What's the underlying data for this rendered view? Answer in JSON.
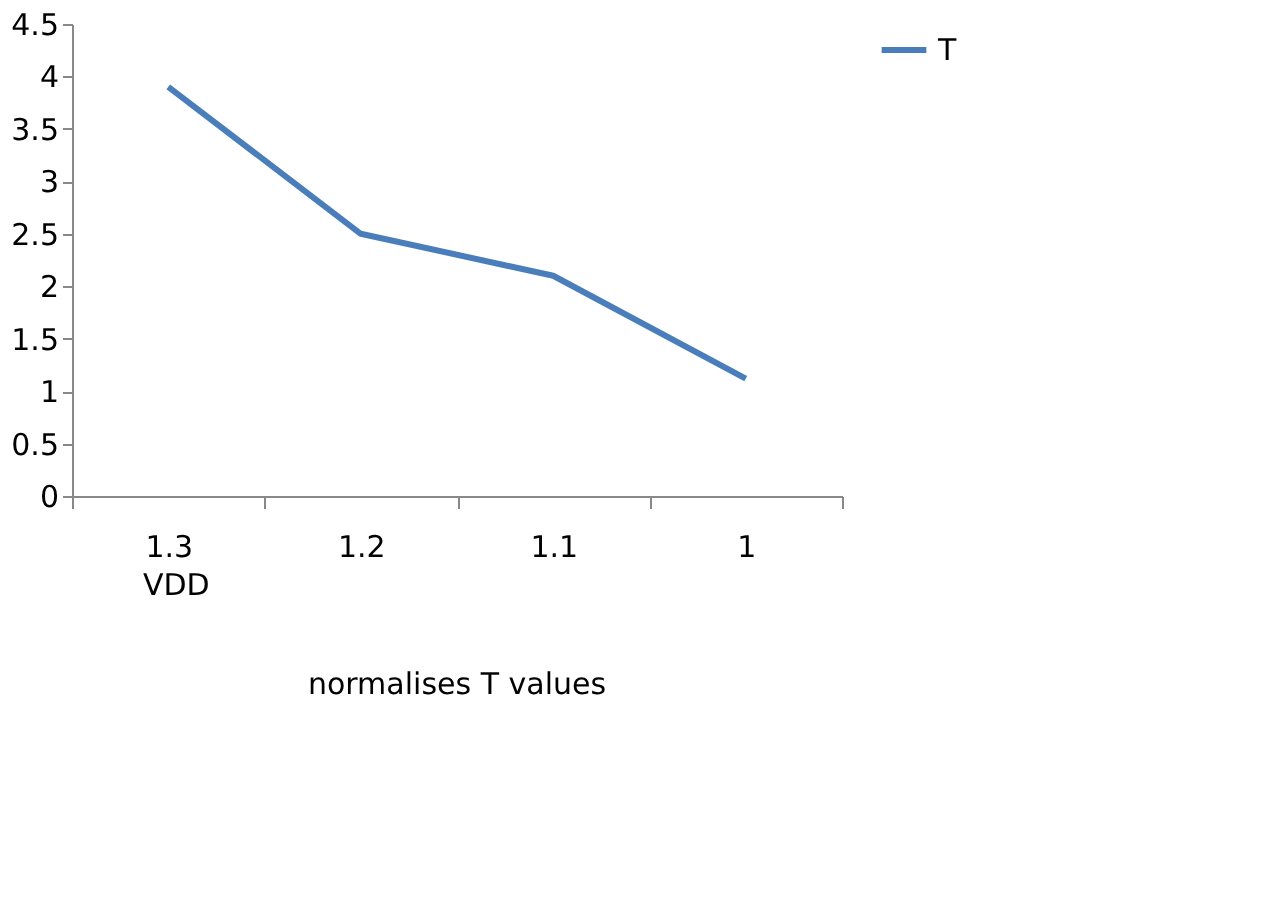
{
  "chart_data": {
    "type": "line",
    "title": "normalises T values",
    "xlabel": "VDD",
    "categories": [
      "1.3",
      "1.2",
      "1.1",
      "1"
    ],
    "series": [
      {
        "name": "T",
        "color": "#4a7ebb",
        "values": [
          3.9,
          2.5,
          2.1,
          1.12
        ]
      }
    ],
    "ylim": [
      0,
      4.5
    ],
    "yticks": [
      0,
      0.5,
      1,
      1.5,
      2,
      2.5,
      3,
      3.5,
      4,
      4.5
    ],
    "grid": false,
    "legend": "right",
    "marker": "none",
    "line_style": "solid"
  }
}
